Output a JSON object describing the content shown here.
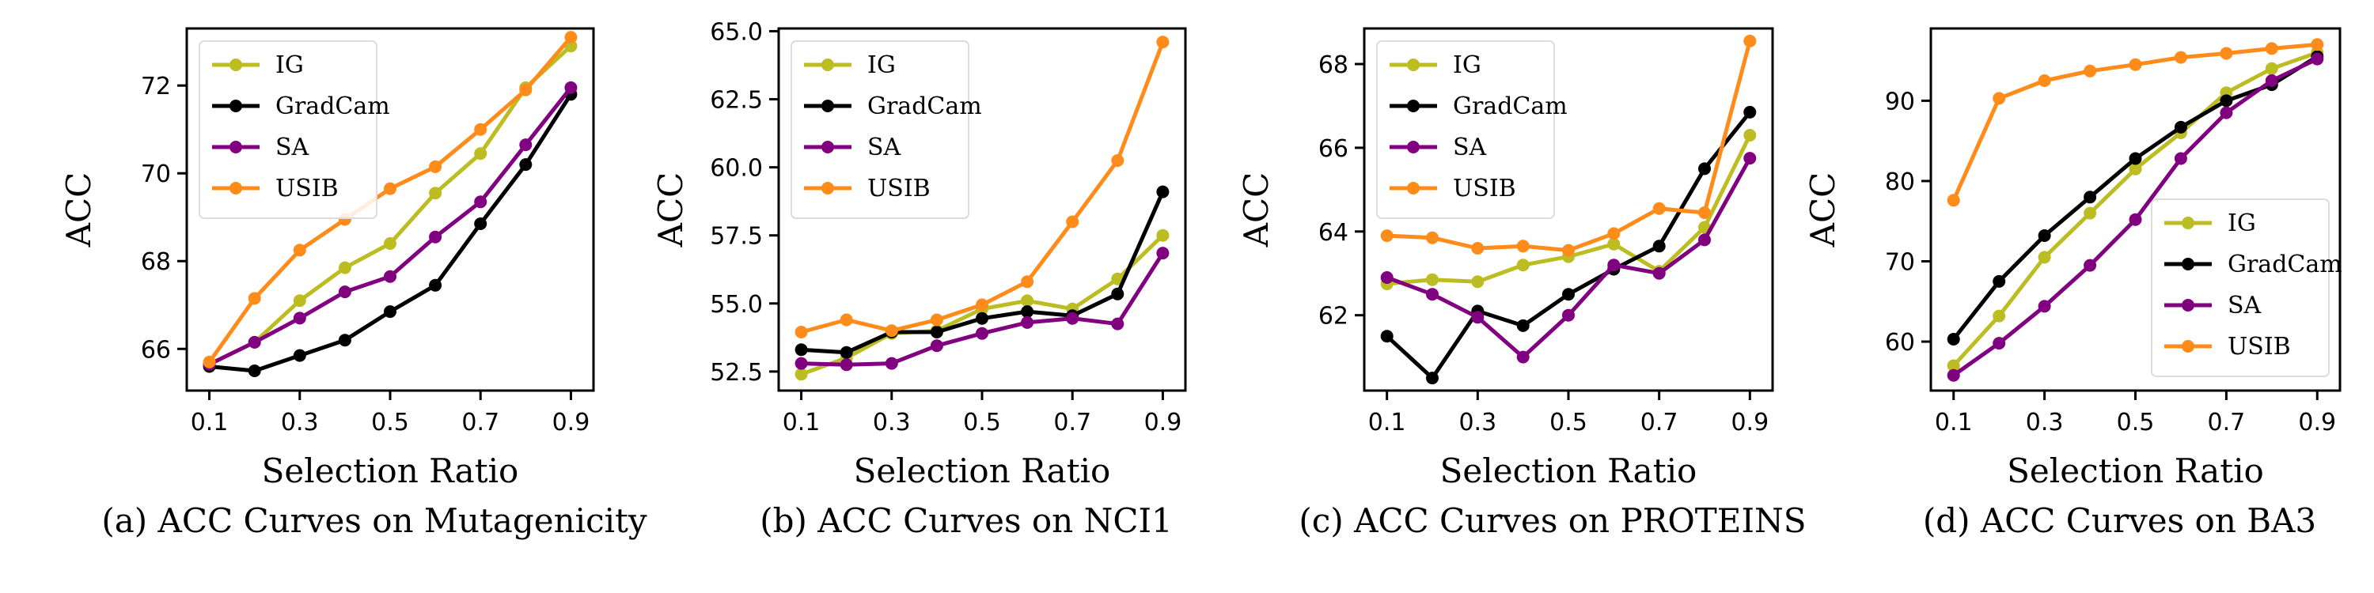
{
  "colors": {
    "IG": "#bcbd22",
    "GradCam": "#000000",
    "SA": "#800080",
    "USIB": "#ff8c1a"
  },
  "chart_data": [
    {
      "type": "line",
      "caption": "(a) ACC Curves on Mutagenicity",
      "xlabel": "Selection Ratio",
      "ylabel": "ACC",
      "x": [
        0.1,
        0.2,
        0.3,
        0.4,
        0.5,
        0.6,
        0.7,
        0.8,
        0.9
      ],
      "xticks": [
        0.1,
        0.3,
        0.5,
        0.7,
        0.9
      ],
      "xtick_labels": [
        "0.1",
        "0.3",
        "0.5",
        "0.7",
        "0.9"
      ],
      "xlim": [
        0.05,
        0.95
      ],
      "ylim": [
        65.05,
        73.3
      ],
      "yticks": [
        66,
        68,
        70,
        72
      ],
      "ytick_labels": [
        "66",
        "68",
        "70",
        "72"
      ],
      "legend_loc": "upper-left",
      "grid": false,
      "series": [
        {
          "name": "IG",
          "values": [
            65.65,
            66.15,
            67.1,
            67.85,
            68.4,
            69.55,
            70.45,
            71.95,
            72.9
          ]
        },
        {
          "name": "GradCam",
          "values": [
            65.6,
            65.5,
            65.85,
            66.2,
            66.85,
            67.45,
            68.85,
            70.2,
            71.8
          ]
        },
        {
          "name": "SA",
          "values": [
            65.65,
            66.15,
            66.7,
            67.3,
            67.65,
            68.55,
            69.35,
            70.65,
            71.95
          ]
        },
        {
          "name": "USIB",
          "values": [
            65.7,
            67.15,
            68.25,
            68.95,
            69.65,
            70.15,
            71.0,
            71.9,
            73.1
          ]
        }
      ]
    },
    {
      "type": "line",
      "caption": "(b) ACC Curves on NCI1",
      "xlabel": "Selection Ratio",
      "ylabel": "ACC",
      "x": [
        0.1,
        0.2,
        0.3,
        0.4,
        0.5,
        0.6,
        0.7,
        0.8,
        0.9
      ],
      "xticks": [
        0.1,
        0.3,
        0.5,
        0.7,
        0.9
      ],
      "xtick_labels": [
        "0.1",
        "0.3",
        "0.5",
        "0.7",
        "0.9"
      ],
      "xlim": [
        0.05,
        0.95
      ],
      "ylim": [
        51.8,
        65.1
      ],
      "yticks": [
        52.5,
        55.0,
        57.5,
        60.0,
        62.5,
        65.0
      ],
      "ytick_labels": [
        "52.5",
        "55.0",
        "57.5",
        "60.0",
        "62.5",
        "65.0"
      ],
      "legend_loc": "upper-left",
      "grid": false,
      "series": [
        {
          "name": "IG",
          "values": [
            52.4,
            53.0,
            53.9,
            54.0,
            54.8,
            55.1,
            54.8,
            55.9,
            57.5
          ]
        },
        {
          "name": "GradCam",
          "values": [
            53.3,
            53.2,
            53.95,
            53.95,
            54.45,
            54.7,
            54.55,
            55.35,
            59.1
          ]
        },
        {
          "name": "SA",
          "values": [
            52.8,
            52.75,
            52.8,
            53.45,
            53.9,
            54.3,
            54.45,
            54.25,
            56.85
          ]
        },
        {
          "name": "USIB",
          "values": [
            53.95,
            54.4,
            54.0,
            54.4,
            54.95,
            55.8,
            58.0,
            60.25,
            64.6
          ]
        }
      ]
    },
    {
      "type": "line",
      "caption": "(c) ACC Curves on PROTEINS",
      "xlabel": "Selection Ratio",
      "ylabel": "ACC",
      "x": [
        0.1,
        0.2,
        0.3,
        0.4,
        0.5,
        0.6,
        0.7,
        0.8,
        0.9
      ],
      "xticks": [
        0.1,
        0.3,
        0.5,
        0.7,
        0.9
      ],
      "xtick_labels": [
        "0.1",
        "0.3",
        "0.5",
        "0.7",
        "0.9"
      ],
      "xlim": [
        0.05,
        0.95
      ],
      "ylim": [
        60.2,
        68.85
      ],
      "yticks": [
        62,
        64,
        66,
        68
      ],
      "ytick_labels": [
        "62",
        "64",
        "66",
        "68"
      ],
      "legend_loc": "upper-left",
      "grid": false,
      "series": [
        {
          "name": "IG",
          "values": [
            62.75,
            62.85,
            62.8,
            63.2,
            63.4,
            63.7,
            63.05,
            64.1,
            66.3
          ]
        },
        {
          "name": "GradCam",
          "values": [
            61.5,
            60.5,
            62.1,
            61.75,
            62.5,
            63.1,
            63.65,
            65.5,
            66.85
          ]
        },
        {
          "name": "SA",
          "values": [
            62.9,
            62.5,
            61.95,
            61.0,
            62.0,
            63.2,
            63.0,
            63.8,
            65.75
          ]
        },
        {
          "name": "USIB",
          "values": [
            63.9,
            63.85,
            63.6,
            63.65,
            63.55,
            63.95,
            64.55,
            64.45,
            68.55
          ]
        }
      ]
    },
    {
      "type": "line",
      "caption": "(d) ACC Curves on BA3",
      "xlabel": "Selection Ratio",
      "ylabel": "ACC",
      "x": [
        0.1,
        0.2,
        0.3,
        0.4,
        0.5,
        0.6,
        0.7,
        0.8,
        0.9
      ],
      "xticks": [
        0.1,
        0.3,
        0.5,
        0.7,
        0.9
      ],
      "xtick_labels": [
        "0.1",
        "0.3",
        "0.5",
        "0.7",
        "0.9"
      ],
      "xlim": [
        0.05,
        0.95
      ],
      "ylim": [
        53.9,
        99.0
      ],
      "yticks": [
        60,
        70,
        80,
        90
      ],
      "ytick_labels": [
        "60",
        "70",
        "80",
        "90"
      ],
      "legend_loc": "lower-right",
      "grid": false,
      "series": [
        {
          "name": "IG",
          "values": [
            57.0,
            63.2,
            70.5,
            76.0,
            81.5,
            86.0,
            91.0,
            94.0,
            96.0
          ]
        },
        {
          "name": "GradCam",
          "values": [
            60.3,
            67.5,
            73.2,
            78.0,
            82.8,
            86.7,
            90.0,
            92.0,
            95.5
          ]
        },
        {
          "name": "SA",
          "values": [
            55.8,
            59.8,
            64.4,
            69.5,
            75.2,
            82.8,
            88.5,
            92.5,
            95.2
          ]
        },
        {
          "name": "USIB",
          "values": [
            77.6,
            90.3,
            92.5,
            93.7,
            94.5,
            95.4,
            95.9,
            96.5,
            97.0
          ]
        }
      ]
    }
  ]
}
